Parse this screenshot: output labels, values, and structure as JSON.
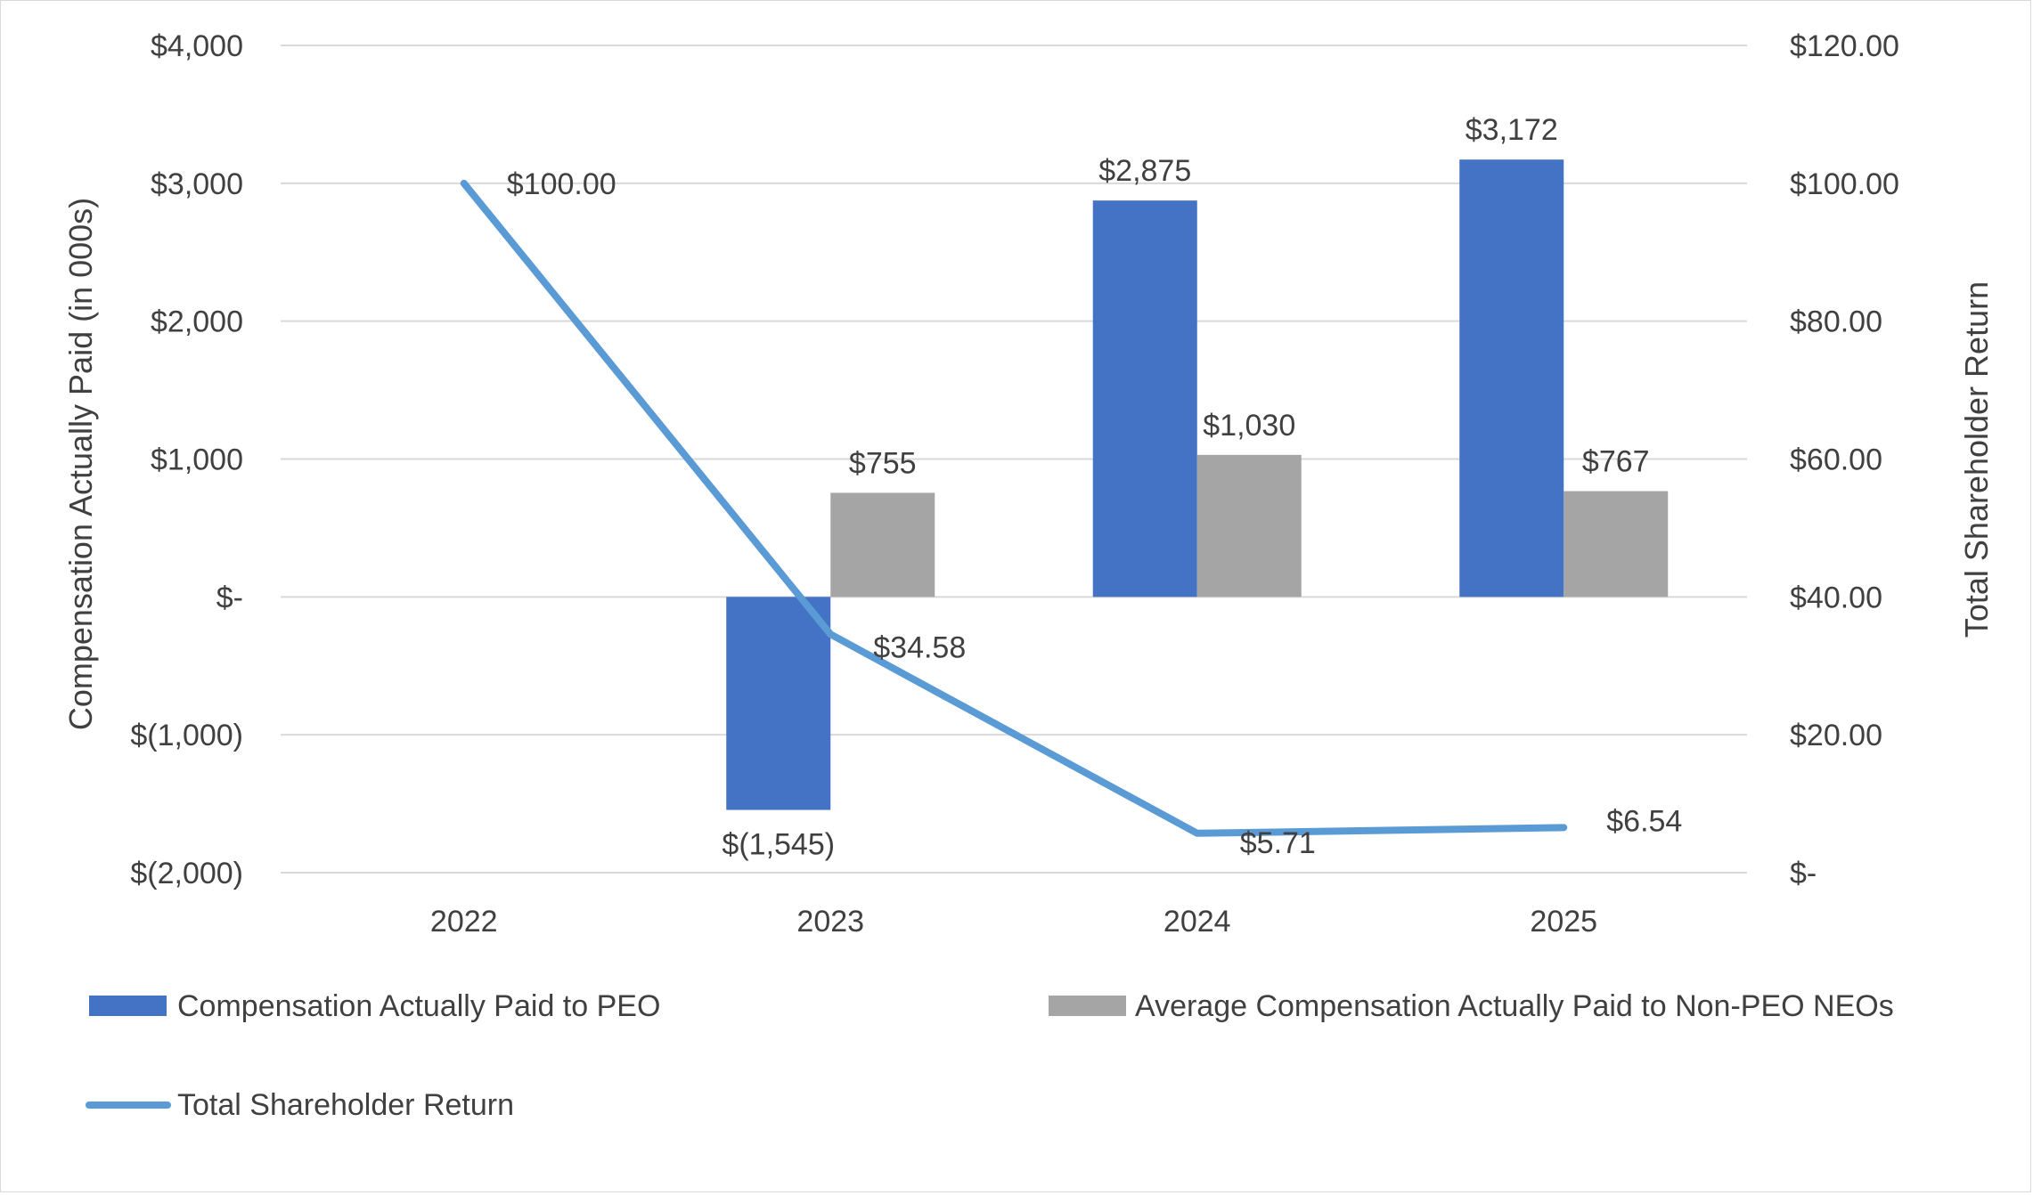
{
  "chart_data": {
    "type": "bar",
    "categories": [
      "2022",
      "2023",
      "2024",
      "2025"
    ],
    "series": [
      {
        "name": "Compensation Actually Paid to PEO",
        "kind": "bar",
        "axis": "left",
        "color": "#4472C4",
        "values": [
          null,
          -1545,
          2875,
          3172
        ],
        "labels": [
          "",
          "$(1,545)",
          "$2,875",
          "$3,172"
        ]
      },
      {
        "name": "Average Compensation Actually Paid to Non-PEO NEOs",
        "kind": "bar",
        "axis": "left",
        "color": "#A5A5A5",
        "values": [
          null,
          755,
          1030,
          767
        ],
        "labels": [
          "",
          "$755",
          "$1,030",
          "$767"
        ]
      },
      {
        "name": "Total Shareholder Return",
        "kind": "line",
        "axis": "right",
        "color": "#5B9BD5",
        "values": [
          100.0,
          34.58,
          5.71,
          6.54
        ],
        "labels": [
          "$100.00",
          "$34.58",
          "$5.71",
          "$6.54"
        ]
      }
    ],
    "ylabel": "Compensation Actually Paid (in 000s)",
    "y2label": "Total Shareholder Return",
    "ylim": [
      -2000,
      4000
    ],
    "y2lim": [
      0,
      120
    ],
    "yticks": [
      4000,
      3000,
      2000,
      1000,
      0,
      -1000,
      -2000
    ],
    "ytick_labels": [
      "$4,000",
      "$3,000",
      "$2,000",
      "$1,000",
      "$-",
      "$(1,000)",
      "$(2,000)"
    ],
    "y2ticks": [
      120,
      100,
      80,
      60,
      40,
      20,
      0
    ],
    "y2tick_labels": [
      "$120.00",
      "$100.00",
      "$80.00",
      "$60.00",
      "$40.00",
      "$20.00",
      "$-"
    ],
    "grid": true,
    "legend": "bottom"
  }
}
